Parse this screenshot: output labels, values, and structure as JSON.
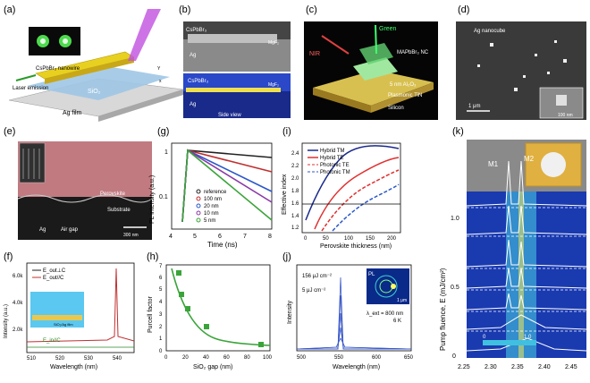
{
  "panels": {
    "a": {
      "label": "(a)",
      "texts": {
        "laser": "Excitation Laser",
        "nanowire": "CsPbBr₃ nanowire",
        "emission": "Laser emission",
        "sio2": "SiO₂",
        "agfilm": "Ag film",
        "x": "x",
        "y": "Y"
      }
    },
    "b": {
      "label": "(b)",
      "top_material": "CsPbBr₃",
      "top_mgf": "MgF₂",
      "top_ag": "Ag",
      "bot_material": "CsPbBr₃",
      "bot_mgf": "MgF₂",
      "bot_ag": "Ag",
      "caption": "Side view"
    },
    "c": {
      "label": "(c)",
      "green": "Green",
      "nir": "NIR",
      "nc": "MAPbBr₃ NC",
      "al2o3": "5 nm Al₂O₃",
      "tin": "Plasmonic TiN",
      "si": "Silicon"
    },
    "d": {
      "label": "(d)",
      "title": "Ag nanocube",
      "scale": "1 μm",
      "inset_scale": "100 nm"
    },
    "e": {
      "label": "(e)",
      "perovskite": "Perovskite",
      "substrate": "Substrate",
      "ag": "Ag",
      "gap": "Air gap",
      "scale": "300 nm"
    },
    "f": {
      "label": "(f)",
      "ylabel": "Intensity (a.u.)",
      "xlabel": "Wavelength (nm)",
      "legend": [
        "E_out⊥C",
        "E_out//C"
      ],
      "extra": "E_in//C",
      "inset": "SiO₂/Ag film",
      "yticks": [
        "2.0k",
        "4.0k",
        "6.0k"
      ],
      "xticks": [
        "510",
        "520",
        "530",
        "540"
      ]
    },
    "g": {
      "label": "(g)",
      "ylabel": "PL intensity (a.u.)",
      "xlabel": "Time (ns)",
      "legend": [
        "reference",
        "100 nm",
        "20 nm",
        "10 nm",
        "5 nm"
      ],
      "yticks": [
        "1",
        "0.1"
      ],
      "xticks": [
        "4",
        "5",
        "6",
        "7",
        "8"
      ]
    },
    "h": {
      "label": "(h)",
      "ylabel": "Purcell factor",
      "xlabel": "SiO₂ gap (nm)",
      "yticks": [
        "0",
        "1",
        "2",
        "3",
        "4",
        "5",
        "6",
        "7"
      ],
      "xticks": [
        "0",
        "20",
        "40",
        "60",
        "80",
        "100"
      ]
    },
    "i": {
      "label": "(i)",
      "ylabel": "Effective index",
      "xlabel": "Perovskite thickness (nm)",
      "legend": [
        "Hybrid TM",
        "Hybrid TE",
        "Photonic TE",
        "Photonic TM"
      ],
      "yticks": [
        "1.2",
        "1.4",
        "1.6",
        "1.8",
        "2.0",
        "2.2",
        "2.4"
      ],
      "xticks": [
        "0",
        "50",
        "100",
        "150",
        "200"
      ]
    },
    "j": {
      "label": "(j)",
      "ylabel": "Intensity",
      "xlabel": "Wavelength (nm)",
      "top": "156 μJ cm⁻²",
      "bottom": "5 μJ cm⁻²",
      "inset_pl": "PL",
      "inset_scale": "1 μm",
      "lambda": "λ_ext = 800 nm",
      "temp": "6 K",
      "xticks": [
        "500",
        "550",
        "600",
        "650"
      ]
    },
    "k": {
      "label": "(k)",
      "ylabel": "Pump fluence, E (mJ/cm²)",
      "m1": "M1",
      "m2": "M2",
      "yticks": [
        "0",
        "0.5",
        "1.0"
      ],
      "xticks": [
        "2.25",
        "2.30",
        "2.35",
        "2.40",
        "2.45"
      ],
      "cbar": [
        "0",
        "1.0"
      ]
    }
  },
  "colors": {
    "red": "#e03030",
    "blue": "#2a58c8",
    "green": "#3aa43a",
    "purple": "#8a3aa8",
    "teal": "#1a8a8a",
    "gray": "#6a6a6a"
  }
}
